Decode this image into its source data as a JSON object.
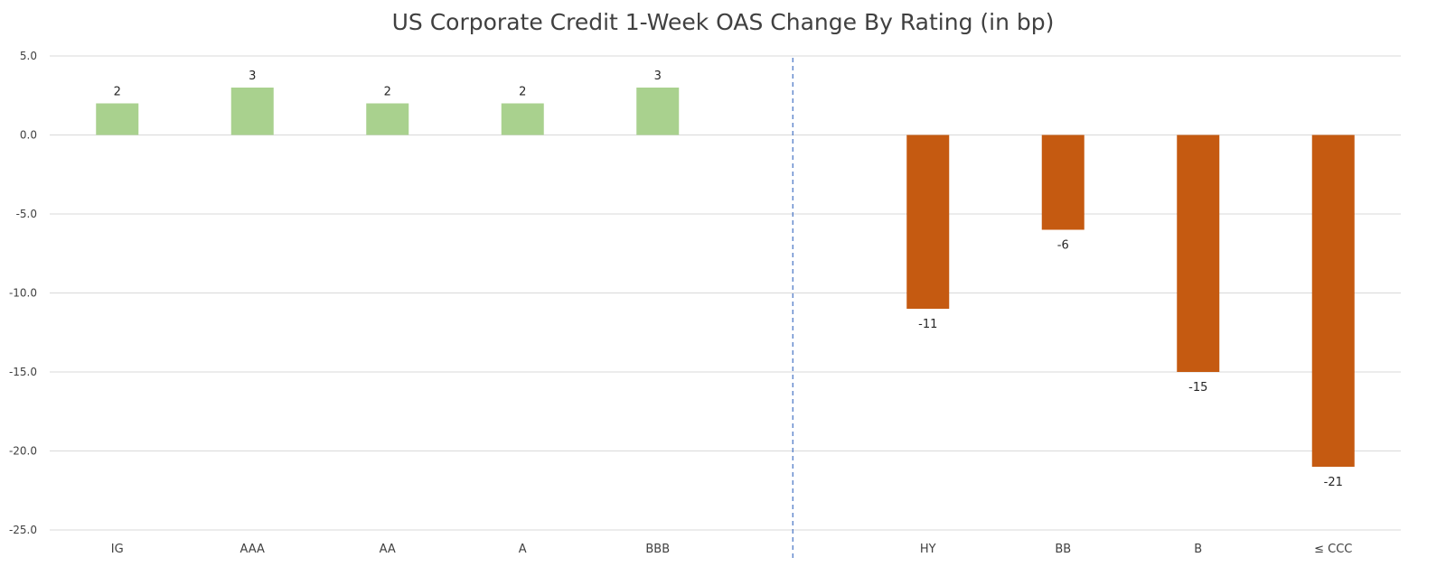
{
  "chart_data": {
    "type": "bar",
    "title": "US Corporate Credit 1-Week OAS Change By Rating (in bp)",
    "xlabel": "",
    "ylabel": "",
    "ylim": [
      -25,
      5
    ],
    "yticks": [
      5,
      0,
      -5,
      -10,
      -15,
      -20,
      -25
    ],
    "ytick_labels": [
      "5.0",
      "0.0",
      "-5.0",
      "-10.0",
      "-15.0",
      "-20.0",
      "-25.0"
    ],
    "grid": true,
    "legend": "none",
    "categories": [
      "IG",
      "AAA",
      "AA",
      "A",
      "BBB",
      "",
      "HY",
      "BB",
      "B",
      "≤ CCC"
    ],
    "values": [
      2,
      3,
      2,
      2,
      3,
      null,
      -11,
      -6,
      -15,
      -21
    ],
    "data_labels": [
      "2",
      "3",
      "2",
      "2",
      "3",
      "",
      "-11",
      "-6",
      "-15",
      "-21"
    ],
    "colors": {
      "positive": "#a9d18e",
      "negative": "#c55a11",
      "grid": "#d9d9d9",
      "divider": "#4472c4"
    },
    "divider_after_category_index": 5
  }
}
